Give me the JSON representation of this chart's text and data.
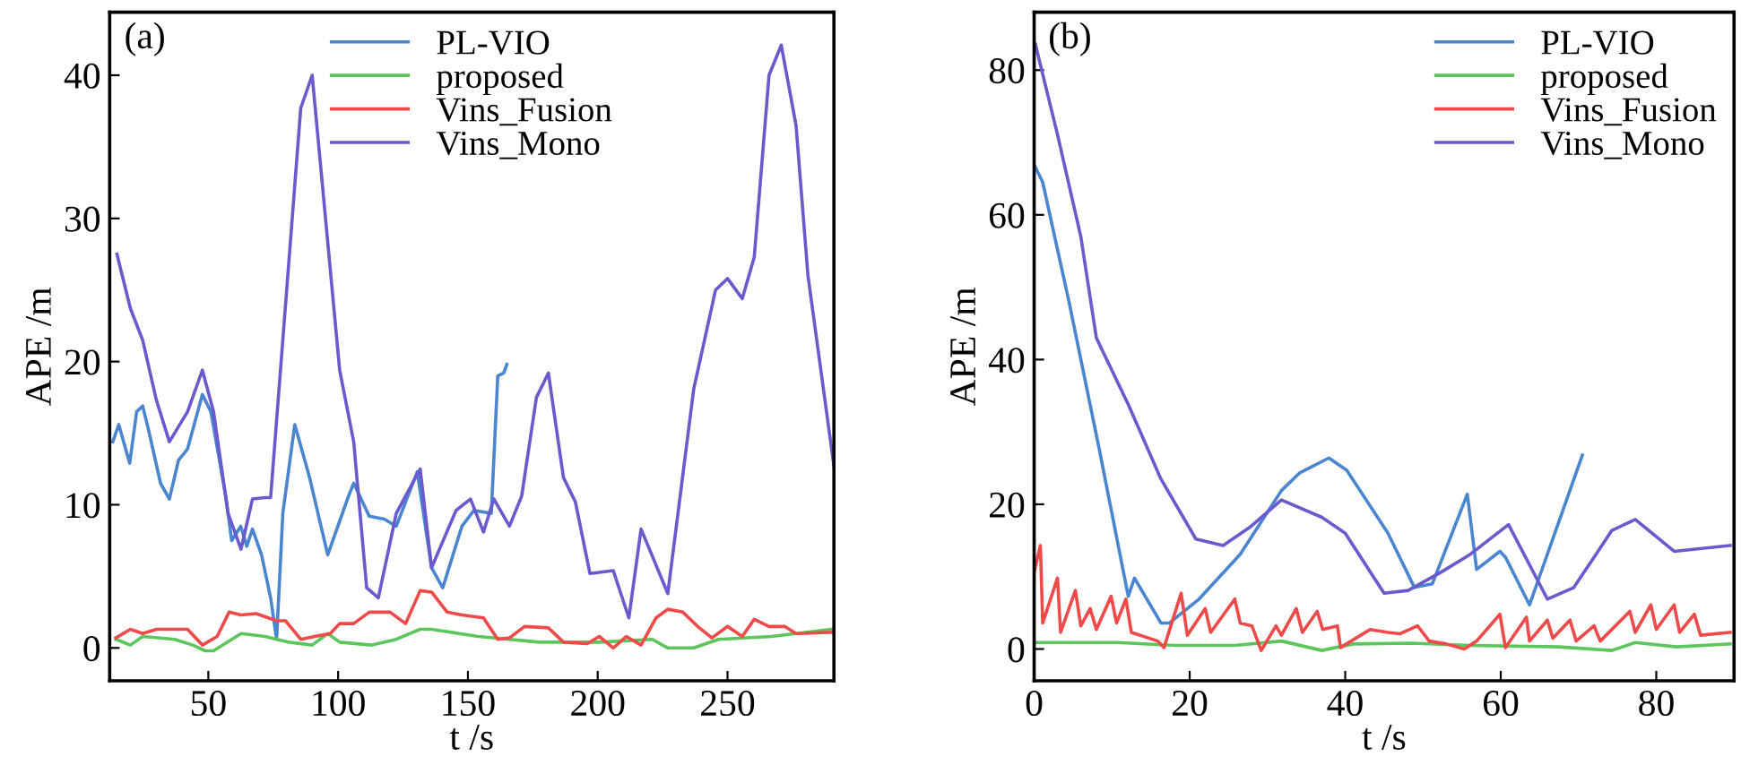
{
  "chart_data": [
    {
      "type": "line",
      "xlabel": "t /s",
      "ylabel": "APE /m",
      "annotations": [
        "(a)"
      ],
      "legend": "top",
      "xlim": [
        12,
        291
      ],
      "ylim": [
        -2.3,
        44.4
      ],
      "xticks": [
        50,
        100,
        150,
        200,
        250
      ],
      "yticks": [
        0,
        10,
        20,
        30,
        40
      ],
      "grid": false,
      "series": [
        {
          "name": "PL-VIO",
          "color": "#4a86d0",
          "x": [
            13.2,
            15.5,
            19.7,
            22.4,
            24.7,
            27,
            31.6,
            35,
            38.5,
            42,
            47.7,
            51,
            56.7,
            59,
            62.5,
            64.8,
            67,
            70.5,
            74,
            76.3,
            78.7,
            83.3,
            89,
            96,
            104,
            106,
            112,
            117.8,
            122.4,
            130.5,
            136,
            140.3,
            147.7,
            152.3,
            159,
            161.5,
            163.8,
            165
          ],
          "values": [
            14.4,
            15.6,
            12.9,
            16.5,
            16.9,
            15.2,
            11.5,
            10.4,
            13.1,
            13.9,
            17.7,
            16.5,
            10.6,
            7.5,
            8.5,
            7.1,
            8.3,
            6.5,
            3.5,
            0.6,
            9.4,
            15.6,
            11.9,
            6.5,
            10.6,
            11.5,
            9.2,
            9,
            8.5,
            12.3,
            5.6,
            4.2,
            8.5,
            9.6,
            9.4,
            19,
            19.2,
            19.8
          ]
        },
        {
          "name": "proposed",
          "color": "#5cc65c",
          "x": [
            14.4,
            20,
            24.7,
            37,
            44,
            48.8,
            52,
            62.6,
            71.8,
            81,
            90,
            96,
            100.6,
            113,
            122.4,
            131.6,
            136,
            154,
            177.6,
            200.6,
            221,
            227,
            237,
            246.5,
            267,
            290
          ],
          "values": [
            0.6,
            0.2,
            0.8,
            0.6,
            0.2,
            -0.2,
            -0.2,
            1.0,
            0.8,
            0.4,
            0.2,
            1.0,
            0.4,
            0.2,
            0.6,
            1.3,
            1.3,
            0.8,
            0.4,
            0.4,
            0.6,
            0,
            0,
            0.6,
            0.8,
            1.3
          ]
        },
        {
          "name": "Vins_Fusion",
          "color": "#ef4a4a",
          "x": [
            14.4,
            20,
            24.7,
            30,
            42,
            47.7,
            53.4,
            58,
            62.6,
            68.4,
            76.3,
            79.7,
            85.6,
            91,
            97,
            100.6,
            106,
            112,
            120,
            126,
            131.6,
            136,
            142,
            147.7,
            156,
            161.5,
            166,
            171.8,
            181,
            186.8,
            196,
            200.6,
            206,
            211,
            216.7,
            222.5,
            227,
            232.8,
            238.5,
            244,
            250,
            255.7,
            260.3,
            266,
            272,
            276.4,
            291
          ],
          "values": [
            0.7,
            1.3,
            1.0,
            1.3,
            1.3,
            0.2,
            0.8,
            2.5,
            2.3,
            2.4,
            1.9,
            1.9,
            0.6,
            0.8,
            1.0,
            1.7,
            1.7,
            2.5,
            2.5,
            1.7,
            4.0,
            3.9,
            2.5,
            2.3,
            2.1,
            0.6,
            0.7,
            1.5,
            1.4,
            0.4,
            0.3,
            0.8,
            0,
            0.8,
            0.2,
            2.1,
            2.7,
            2.5,
            1.5,
            0.7,
            1.5,
            0.8,
            2.0,
            1.5,
            1.5,
            1.0,
            1.1
          ]
        },
        {
          "name": "Vins_Mono",
          "color": "#6a5acd",
          "x": [
            14.8,
            20,
            24.7,
            30,
            35,
            42,
            47.7,
            52,
            57.6,
            62.6,
            67,
            71.8,
            74,
            85.6,
            90,
            100.6,
            106,
            111,
            115.5,
            122.4,
            131.6,
            136,
            145.4,
            151,
            156,
            160,
            166,
            170.7,
            176.4,
            181,
            186.8,
            191.4,
            197,
            206,
            212,
            216.7,
            227,
            237,
            245.4,
            250,
            255.7,
            260.3,
            266,
            270.7,
            276.4,
            281,
            291
          ],
          "values": [
            27.5,
            23.7,
            21.5,
            17.3,
            14.4,
            16.5,
            19.4,
            16.5,
            9.4,
            6.9,
            10.4,
            10.5,
            10.5,
            37.7,
            40,
            19.4,
            14.4,
            4.2,
            3.5,
            9.4,
            12.5,
            5.6,
            9.6,
            10.4,
            8.1,
            10.4,
            8.5,
            10.6,
            17.5,
            19.2,
            11.9,
            10.2,
            5.2,
            5.4,
            2.1,
            8.3,
            3.8,
            18.1,
            25,
            25.8,
            24.4,
            27.3,
            40,
            42.1,
            36.5,
            26,
            12.7
          ]
        }
      ]
    },
    {
      "type": "line",
      "xlabel": "t /s",
      "ylabel": "APE /m",
      "annotations": [
        "(b)"
      ],
      "legend": "top right",
      "xlim": [
        0,
        90
      ],
      "ylim": [
        -4.4,
        88
      ],
      "xticks": [
        0,
        20,
        40,
        60,
        80
      ],
      "yticks": [
        0,
        20,
        40,
        60,
        80
      ],
      "grid": false,
      "series": [
        {
          "name": "PL-VIO",
          "color": "#4a86d0",
          "x": [
            0.15,
            1.1,
            4.5,
            8.3,
            12.1,
            12.9,
            16.3,
            17.4,
            21.2,
            26.5,
            31.8,
            34.1,
            37.9,
            40.2,
            45.5,
            48.9,
            51.2,
            55.7,
            56.9,
            59.9,
            60.6,
            63.7,
            70.5
          ],
          "values": [
            66.6,
            64.5,
            47.9,
            28,
            7.3,
            9.8,
            3.6,
            3.6,
            6.9,
            13.1,
            21.9,
            24.3,
            26.4,
            24.7,
            16,
            8.5,
            9,
            21.4,
            11,
            13.5,
            12.7,
            6.1,
            26.8
          ]
        },
        {
          "name": "proposed",
          "color": "#5cc65c",
          "x": [
            0,
            10.6,
            18.2,
            25.8,
            31.8,
            37,
            41,
            48.5,
            56,
            67.5,
            74.3,
            77.3,
            82.6,
            89.5
          ],
          "values": [
            0.9,
            0.9,
            0.5,
            0.5,
            1.1,
            -0.2,
            0.7,
            0.8,
            0.5,
            0.3,
            -0.2,
            0.9,
            0.3,
            0.7
          ]
        },
        {
          "name": "Vins_Fusion",
          "color": "#ef4a4a",
          "x": [
            0,
            0.8,
            1.1,
            3,
            3.4,
            5.3,
            6,
            7.2,
            8,
            9.9,
            10.6,
            11.8,
            12.5,
            15.9,
            16.7,
            18.9,
            19.7,
            22,
            22.7,
            25.8,
            26.5,
            28,
            29.2,
            31.1,
            31.8,
            33.7,
            34.5,
            36.4,
            37.1,
            39,
            39.4,
            43.2,
            45.5,
            47,
            49.3,
            50.8,
            53,
            55.3,
            56.9,
            59.9,
            60.6,
            63.3,
            63.7,
            66,
            66.7,
            68.9,
            69.7,
            72,
            72.8,
            76.6,
            77.3,
            79.3,
            80,
            82.3,
            83,
            84.9,
            85.7,
            89.5
          ],
          "values": [
            10.6,
            14.3,
            3.6,
            9.8,
            2.3,
            8.1,
            3.2,
            5.6,
            2.7,
            7.3,
            3.6,
            6.9,
            2.3,
            1.1,
            0.2,
            7.7,
            1.9,
            5.6,
            2.3,
            6.9,
            3.6,
            3.2,
            -0.2,
            3.2,
            1.9,
            5.6,
            2.3,
            5.2,
            2.7,
            3.2,
            0.2,
            2.7,
            2.3,
            2.1,
            3.2,
            1.1,
            0.7,
            0,
            1.1,
            4.8,
            0.2,
            4.4,
            1.1,
            4.0,
            1.5,
            4.0,
            1.1,
            3.2,
            1.1,
            5.2,
            2.3,
            6.1,
            2.7,
            6.1,
            2.3,
            4.8,
            1.9,
            2.3
          ]
        },
        {
          "name": "Vins_Mono",
          "color": "#6a5acd",
          "x": [
            0.15,
            3,
            6,
            8,
            12.1,
            16.3,
            20.8,
            24.3,
            27.7,
            31.8,
            37,
            40,
            45,
            48.1,
            52.3,
            56.1,
            61,
            66,
            69.4,
            74.3,
            77.3,
            82.3,
            89.5
          ],
          "values": [
            83.6,
            71.1,
            57,
            43,
            33.8,
            23.5,
            15.2,
            14.3,
            16.8,
            20.6,
            18.2,
            16,
            7.7,
            8.1,
            10.6,
            13.1,
            17.2,
            6.9,
            8.5,
            16.4,
            17.9,
            13.5,
            14.3
          ]
        }
      ]
    }
  ]
}
